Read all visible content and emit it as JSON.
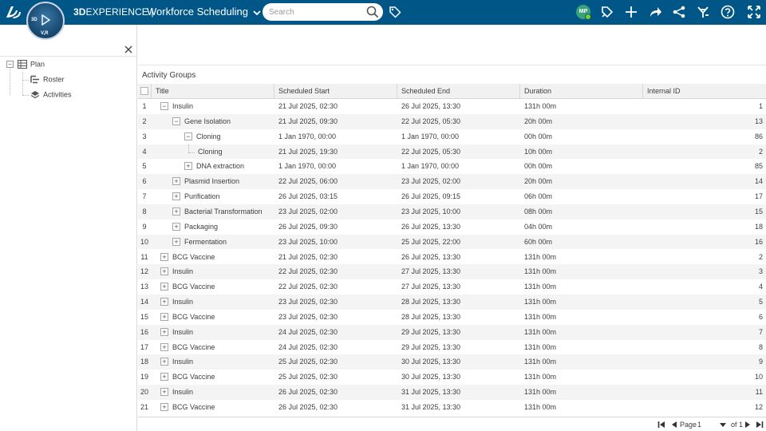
{
  "header": {
    "brand_bold": "3D",
    "brand_rest": "EXPERIENCE |",
    "app_title": "Workforce Scheduling",
    "search_placeholder": "Search",
    "avatar_initials": "MP",
    "compass_label": "V,R",
    "compass_3d": "3D",
    "colors": {
      "bar": "#005686",
      "avatar": "#3aa17a"
    }
  },
  "tree": {
    "root": "Plan",
    "children": [
      "Roster",
      "Activities"
    ]
  },
  "grid": {
    "title": "Activity Groups",
    "columns": [
      "Title",
      "Scheduled Start",
      "Scheduled End",
      "Duration",
      "Internal ID"
    ],
    "rows": [
      {
        "idx": "1",
        "title": "Insulin",
        "start": "21 Jul 2025, 02:30",
        "end": "26 Jul 2025, 13:30",
        "dur": "131h 00m",
        "id": "1"
      },
      {
        "idx": "2",
        "title": "Gene Isolation",
        "start": "21 Jul 2025, 09:30",
        "end": "22 Jul 2025, 05:30",
        "dur": "20h 00m",
        "id": "13"
      },
      {
        "idx": "3",
        "title": "Cloning",
        "start": "1 Jan 1970, 00:00",
        "end": "1 Jan 1970, 00:00",
        "dur": "00h 00m",
        "id": "86"
      },
      {
        "idx": "4",
        "title": "Cloning",
        "start": "21 Jul 2025, 19:30",
        "end": "22 Jul 2025, 05:30",
        "dur": "10h 00m",
        "id": "2"
      },
      {
        "idx": "5",
        "title": "DNA extraction",
        "start": "1 Jan 1970, 00:00",
        "end": "1 Jan 1970, 00:00",
        "dur": "00h 00m",
        "id": "85"
      },
      {
        "idx": "6",
        "title": "Plasmid Insertion",
        "start": "22 Jul 2025, 06:00",
        "end": "23 Jul 2025, 02:00",
        "dur": "20h 00m",
        "id": "14"
      },
      {
        "idx": "7",
        "title": "Purification",
        "start": "26 Jul 2025, 03:15",
        "end": "26 Jul 2025, 09:15",
        "dur": "06h 00m",
        "id": "17"
      },
      {
        "idx": "8",
        "title": "Bacterial Transformation",
        "start": "23 Jul 2025, 02:00",
        "end": "23 Jul 2025, 10:00",
        "dur": "08h 00m",
        "id": "15"
      },
      {
        "idx": "9",
        "title": "Packaging",
        "start": "26 Jul 2025, 09:30",
        "end": "26 Jul 2025, 13:30",
        "dur": "04h 00m",
        "id": "18"
      },
      {
        "idx": "10",
        "title": "Fermentation",
        "start": "23 Jul 2025, 10:00",
        "end": "25 Jul 2025, 22:00",
        "dur": "60h 00m",
        "id": "16"
      },
      {
        "idx": "11",
        "title": "BCG Vaccine",
        "start": "21 Jul 2025, 02:30",
        "end": "26 Jul 2025, 13:30",
        "dur": "131h 00m",
        "id": "2"
      },
      {
        "idx": "12",
        "title": "Insulin",
        "start": "22 Jul 2025, 02:30",
        "end": "27 Jul 2025, 13:30",
        "dur": "131h 00m",
        "id": "3"
      },
      {
        "idx": "13",
        "title": "BCG Vaccine",
        "start": "22 Jul 2025, 02:30",
        "end": "27 Jul 2025, 13:30",
        "dur": "131h 00m",
        "id": "4"
      },
      {
        "idx": "14",
        "title": "Insulin",
        "start": "23 Jul 2025, 02:30",
        "end": "28 Jul 2025, 13:30",
        "dur": "131h 00m",
        "id": "5"
      },
      {
        "idx": "15",
        "title": "BCG Vaccine",
        "start": "23 Jul 2025, 02:30",
        "end": "28 Jul 2025, 13:30",
        "dur": "131h 00m",
        "id": "6"
      },
      {
        "idx": "16",
        "title": "Insulin",
        "start": "24 Jul 2025, 02:30",
        "end": "29 Jul 2025, 13:30",
        "dur": "131h 00m",
        "id": "7"
      },
      {
        "idx": "17",
        "title": "BCG Vaccine",
        "start": "24 Jul 2025, 02:30",
        "end": "29 Jul 2025, 13:30",
        "dur": "131h 00m",
        "id": "8"
      },
      {
        "idx": "18",
        "title": "Insulin",
        "start": "25 Jul 2025, 02:30",
        "end": "30 Jul 2025, 13:30",
        "dur": "131h 00m",
        "id": "9"
      },
      {
        "idx": "19",
        "title": "BCG Vaccine",
        "start": "25 Jul 2025, 02:30",
        "end": "30 Jul 2025, 13:30",
        "dur": "131h 00m",
        "id": "10"
      },
      {
        "idx": "20",
        "title": "Insulin",
        "start": "26 Jul 2025, 02:30",
        "end": "31 Jul 2025, 13:30",
        "dur": "131h 00m",
        "id": "11"
      },
      {
        "idx": "21",
        "title": "BCG Vaccine",
        "start": "26 Jul 2025, 02:30",
        "end": "31 Jul 2025, 13:30",
        "dur": "131h 00m",
        "id": "12"
      }
    ]
  },
  "pager": {
    "page_label": "Page",
    "page_value": "1",
    "of_label": "of 1"
  }
}
